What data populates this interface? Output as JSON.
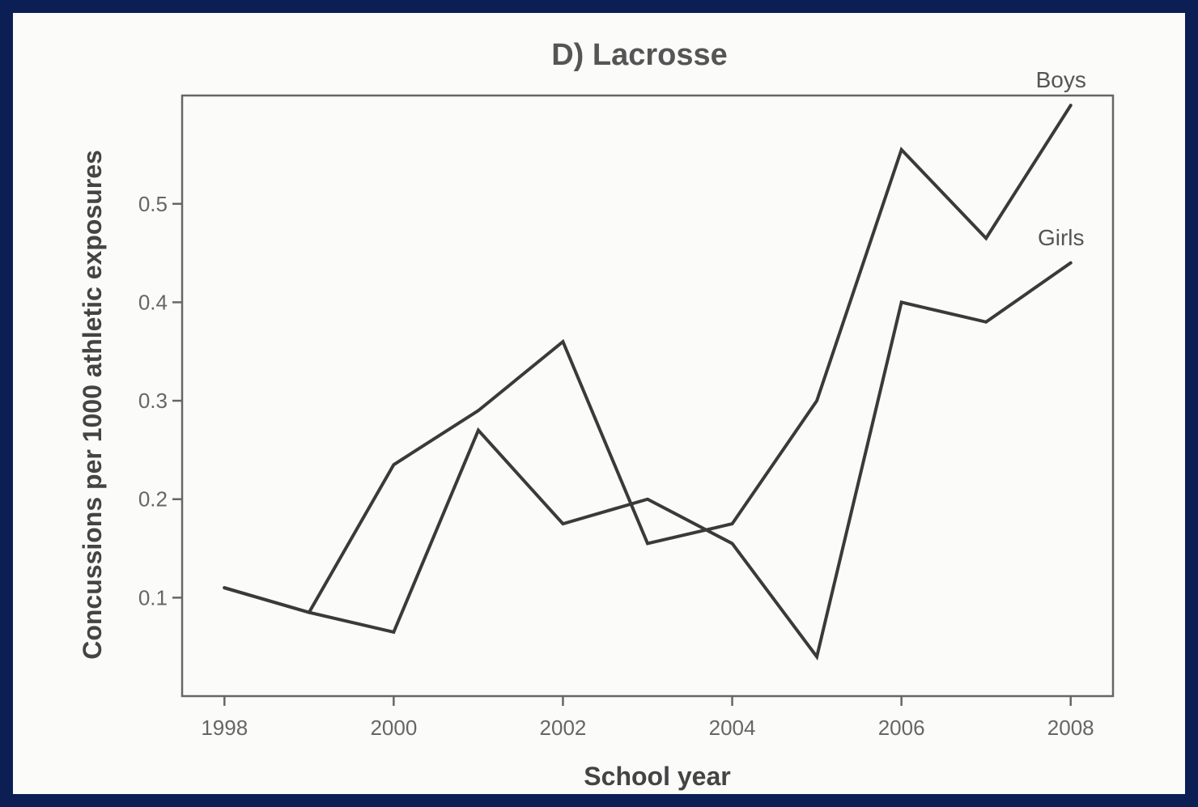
{
  "chart_data": {
    "type": "line",
    "title": "D) Lacrosse",
    "xlabel": "School year",
    "ylabel": "Concussions per 1000 athletic exposures",
    "x": [
      1998,
      1999,
      2000,
      2001,
      2002,
      2003,
      2004,
      2005,
      2006,
      2007,
      2008
    ],
    "x_ticks": [
      1998,
      2000,
      2002,
      2004,
      2006,
      2008
    ],
    "x_tick_labels": [
      "1998",
      "2000",
      "2002",
      "2004",
      "2006",
      "2008"
    ],
    "y_ticks": [
      0.1,
      0.2,
      0.3,
      0.4,
      0.5
    ],
    "y_tick_labels": [
      "0.1",
      "0.2",
      "0.3",
      "0.4",
      "0.5"
    ],
    "xlim": [
      1997.5,
      2008.5
    ],
    "ylim": [
      0.0,
      0.61
    ],
    "grid": false,
    "legend": "none",
    "series": [
      {
        "name": "Boys",
        "values": [
          0.11,
          0.085,
          0.235,
          0.29,
          0.36,
          0.155,
          0.175,
          0.3,
          0.555,
          0.465,
          0.6
        ]
      },
      {
        "name": "Girls",
        "values": [
          0.11,
          0.085,
          0.065,
          0.27,
          0.175,
          0.2,
          0.155,
          0.04,
          0.4,
          0.38,
          0.44
        ]
      }
    ],
    "line_color": "#3a3a3a"
  }
}
